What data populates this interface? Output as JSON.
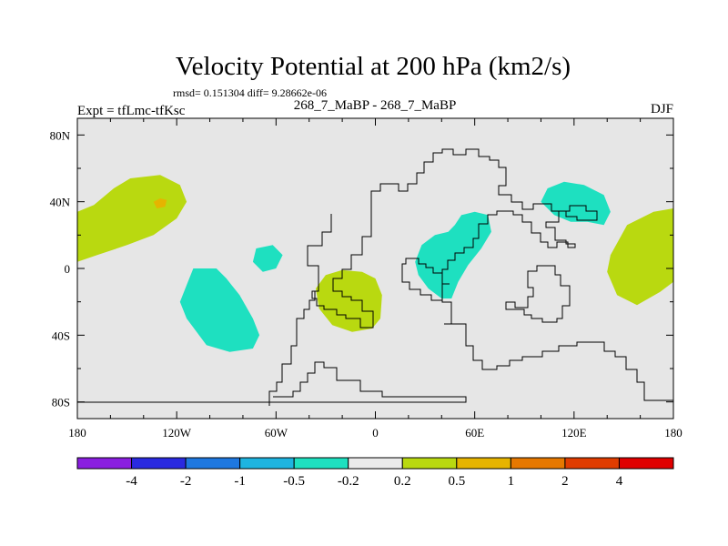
{
  "chart_data": {
    "type": "contour-map",
    "title": "Velocity Potential at 200 hPa (km2/s)",
    "stats": "rmsd= 0.151304 diff= 9.28662e-06",
    "left_label": "Expt = tfLmc-tfKsc",
    "center_label": "268_7_MaBP - 268_7_MaBP",
    "right_label": "DJF",
    "x_ticks": [
      {
        "value": -180,
        "label": "180"
      },
      {
        "value": -120,
        "label": "120W"
      },
      {
        "value": -60,
        "label": "60W"
      },
      {
        "value": 0,
        "label": "0"
      },
      {
        "value": 60,
        "label": "60E"
      },
      {
        "value": 120,
        "label": "120E"
      },
      {
        "value": 180,
        "label": "180"
      }
    ],
    "y_ticks": [
      {
        "value": 80,
        "label": "80N"
      },
      {
        "value": 40,
        "label": "40N"
      },
      {
        "value": 0,
        "label": "0"
      },
      {
        "value": -40,
        "label": "40S"
      },
      {
        "value": -80,
        "label": "80S"
      }
    ],
    "xlim": [
      -180,
      180
    ],
    "ylim": [
      -90,
      90
    ],
    "colorbar": {
      "colors": [
        "#8a1ee0",
        "#2a2ae0",
        "#1e78e0",
        "#1eb4e0",
        "#1ee0c0",
        "#ebebeb",
        "#b9d910",
        "#e6b400",
        "#e67800",
        "#e03c00",
        "#e00000"
      ],
      "labels": [
        "-4",
        "-2",
        "-1",
        "-0.5",
        "-0.2",
        "0.2",
        "0.5",
        "1",
        "2",
        "4"
      ]
    },
    "regions": [
      {
        "level": "0.5 to 1",
        "color": "#b9d910",
        "points": [
          [
            -180,
            34
          ],
          [
            -170,
            38
          ],
          [
            -158,
            48
          ],
          [
            -148,
            54
          ],
          [
            -130,
            56
          ],
          [
            -118,
            50
          ],
          [
            -114,
            40
          ],
          [
            -120,
            30
          ],
          [
            -134,
            20
          ],
          [
            -150,
            14
          ],
          [
            -168,
            8
          ],
          [
            -180,
            4
          ]
        ]
      },
      {
        "level": "1 to 2",
        "color": "#e6b400",
        "points": [
          [
            -134,
            40
          ],
          [
            -130,
            42
          ],
          [
            -126,
            41
          ],
          [
            -127,
            37
          ],
          [
            -132,
            36
          ]
        ]
      },
      {
        "level": "0.5 to 1",
        "color": "#b9d910",
        "points": [
          [
            180,
            36
          ],
          [
            168,
            34
          ],
          [
            152,
            26
          ],
          [
            142,
            8
          ],
          [
            140,
            -2
          ],
          [
            146,
            -16
          ],
          [
            158,
            -22
          ],
          [
            172,
            -14
          ],
          [
            180,
            -8
          ]
        ]
      },
      {
        "level": "0.5 to 1",
        "color": "#b9d910",
        "points": [
          [
            -30,
            -4
          ],
          [
            -20,
            -1
          ],
          [
            -8,
            -2
          ],
          [
            0,
            -6
          ],
          [
            4,
            -16
          ],
          [
            3,
            -30
          ],
          [
            -2,
            -36
          ],
          [
            -14,
            -38
          ],
          [
            -26,
            -34
          ],
          [
            -34,
            -24
          ],
          [
            -36,
            -12
          ]
        ]
      },
      {
        "level": "-0.5 to -0.2",
        "color": "#1ee0c0",
        "points": [
          [
            -110,
            0
          ],
          [
            -96,
            0
          ],
          [
            -90,
            -6
          ],
          [
            -82,
            -16
          ],
          [
            -74,
            -30
          ],
          [
            -70,
            -40
          ],
          [
            -74,
            -48
          ],
          [
            -88,
            -50
          ],
          [
            -102,
            -46
          ],
          [
            -114,
            -30
          ],
          [
            -118,
            -20
          ],
          [
            -114,
            -10
          ]
        ]
      },
      {
        "level": "-0.5 to -0.2",
        "color": "#1ee0c0",
        "points": [
          [
            -72,
            12
          ],
          [
            -62,
            14
          ],
          [
            -56,
            8
          ],
          [
            -60,
            0
          ],
          [
            -68,
            -2
          ],
          [
            -74,
            4
          ]
        ]
      },
      {
        "level": "-0.5 to -0.2",
        "color": "#1ee0c0",
        "points": [
          [
            52,
            32
          ],
          [
            60,
            34
          ],
          [
            68,
            32
          ],
          [
            70,
            22
          ],
          [
            64,
            12
          ],
          [
            56,
            2
          ],
          [
            50,
            -8
          ],
          [
            46,
            -18
          ],
          [
            40,
            -18
          ],
          [
            32,
            -12
          ],
          [
            26,
            -4
          ],
          [
            24,
            4
          ],
          [
            28,
            14
          ],
          [
            36,
            20
          ],
          [
            44,
            22
          ],
          [
            48,
            26
          ]
        ]
      },
      {
        "level": "-0.5 to -0.2",
        "color": "#1ee0c0",
        "points": [
          [
            104,
            48
          ],
          [
            114,
            52
          ],
          [
            126,
            50
          ],
          [
            138,
            44
          ],
          [
            142,
            34
          ],
          [
            138,
            26
          ],
          [
            128,
            28
          ],
          [
            118,
            28
          ],
          [
            108,
            32
          ],
          [
            100,
            40
          ]
        ]
      }
    ]
  }
}
